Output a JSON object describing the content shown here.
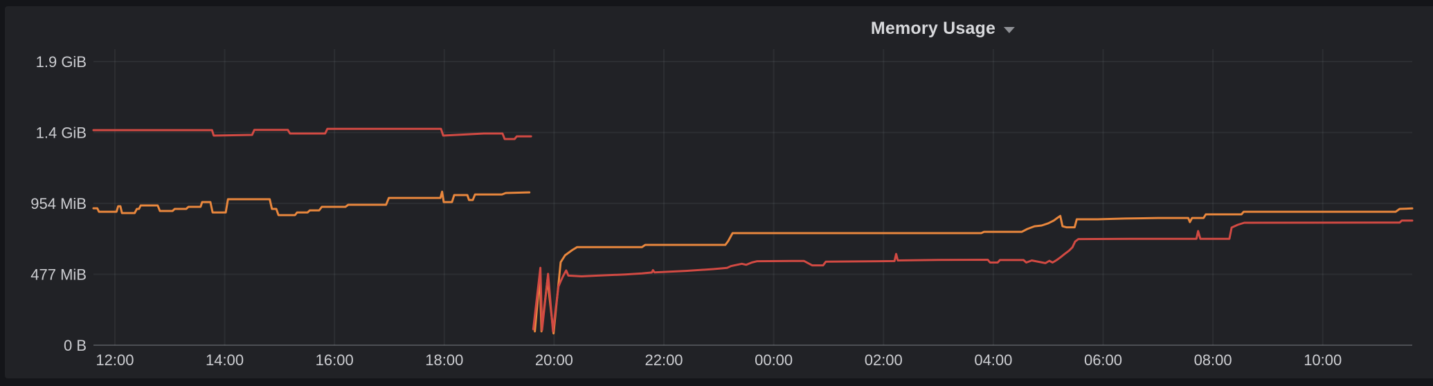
{
  "page": {
    "background": "#141519"
  },
  "panel": {
    "title": "Memory Usage",
    "background": "#212226",
    "title_color": "#d8d9dc",
    "chevron_color": "#8f9196"
  },
  "chart_data": {
    "type": "line",
    "title": "Memory Usage",
    "xlabel": "",
    "ylabel": "",
    "legend": "none",
    "grid": true,
    "x_unit": "time (hours, 24h clock; values >= 24 are next day)",
    "y_unit": "MiB",
    "x_range": [
      11.61,
      35.63
    ],
    "y_range": [
      0,
      1992
    ],
    "grid_color": "rgba(204,208,216,0.07)",
    "axis_line_color": "rgba(204,208,216,0.26)",
    "label_color": "#cdced2",
    "x_ticks": [
      {
        "t": 12,
        "label": "12:00"
      },
      {
        "t": 14,
        "label": "14:00"
      },
      {
        "t": 16,
        "label": "16:00"
      },
      {
        "t": 18,
        "label": "18:00"
      },
      {
        "t": 20,
        "label": "20:00"
      },
      {
        "t": 22,
        "label": "22:00"
      },
      {
        "t": 24,
        "label": "00:00"
      },
      {
        "t": 26,
        "label": "02:00"
      },
      {
        "t": 28,
        "label": "04:00"
      },
      {
        "t": 30,
        "label": "06:00"
      },
      {
        "t": 32,
        "label": "08:00"
      },
      {
        "t": 34,
        "label": "10:00"
      }
    ],
    "y_ticks": [
      {
        "v": 0,
        "label": "0 B"
      },
      {
        "v": 477,
        "label": "477 MiB"
      },
      {
        "v": 954,
        "label": "954 MiB"
      },
      {
        "v": 1431,
        "label": "1.4 GiB"
      },
      {
        "v": 1908,
        "label": "1.9 GiB"
      }
    ],
    "series": [
      {
        "name": "orange-series",
        "color": "#e9873d",
        "segments": [
          [
            [
              11.61,
              921
            ],
            [
              11.68,
              921
            ],
            [
              11.71,
              898
            ],
            [
              12.03,
              898
            ],
            [
              12.06,
              935
            ],
            [
              12.1,
              935
            ],
            [
              12.13,
              889
            ],
            [
              12.36,
              889
            ],
            [
              12.4,
              917
            ],
            [
              12.44,
              917
            ],
            [
              12.47,
              940
            ],
            [
              12.78,
              940
            ],
            [
              12.82,
              903
            ],
            [
              13.05,
              903
            ],
            [
              13.09,
              917
            ],
            [
              13.3,
              917
            ],
            [
              13.34,
              931
            ],
            [
              13.56,
              931
            ],
            [
              13.59,
              963
            ],
            [
              13.74,
              963
            ],
            [
              13.78,
              893
            ],
            [
              14.02,
              893
            ],
            [
              14.06,
              982
            ],
            [
              14.82,
              982
            ],
            [
              14.86,
              917
            ],
            [
              14.94,
              917
            ],
            [
              14.98,
              875
            ],
            [
              15.28,
              875
            ],
            [
              15.32,
              893
            ],
            [
              15.51,
              893
            ],
            [
              15.55,
              907
            ],
            [
              15.72,
              907
            ],
            [
              15.77,
              931
            ],
            [
              16.2,
              931
            ],
            [
              16.25,
              945
            ],
            [
              16.94,
              945
            ],
            [
              16.99,
              991
            ],
            [
              17.93,
              991
            ],
            [
              17.96,
              1033
            ],
            [
              17.99,
              963
            ],
            [
              18.14,
              963
            ],
            [
              18.18,
              1010
            ],
            [
              18.42,
              1010
            ],
            [
              18.45,
              977
            ],
            [
              18.52,
              977
            ],
            [
              18.56,
              1014
            ],
            [
              19.05,
              1014
            ],
            [
              19.12,
              1024
            ],
            [
              19.55,
              1028
            ]
          ],
          [
            [
              19.65,
              93
            ],
            [
              19.74,
              465
            ],
            [
              19.77,
              93
            ],
            [
              19.88,
              442
            ],
            [
              19.99,
              79
            ],
            [
              20.12,
              558
            ],
            [
              20.2,
              605
            ],
            [
              20.33,
              640
            ],
            [
              20.42,
              660
            ],
            [
              21.6,
              660
            ],
            [
              21.66,
              675
            ],
            [
              23.12,
              675
            ],
            [
              23.17,
              700
            ],
            [
              23.25,
              754
            ],
            [
              27.78,
              754
            ],
            [
              27.83,
              763
            ],
            [
              28.52,
              763
            ],
            [
              28.62,
              782
            ],
            [
              28.75,
              800
            ],
            [
              28.88,
              805
            ],
            [
              29.0,
              820
            ],
            [
              29.1,
              838
            ],
            [
              29.18,
              860
            ],
            [
              29.22,
              870
            ],
            [
              29.26,
              800
            ],
            [
              29.33,
              793
            ],
            [
              29.48,
              793
            ],
            [
              29.52,
              847
            ],
            [
              29.9,
              847
            ],
            [
              30.4,
              852
            ],
            [
              31.0,
              856
            ],
            [
              31.55,
              856
            ],
            [
              31.58,
              828
            ],
            [
              31.62,
              856
            ],
            [
              31.83,
              856
            ],
            [
              31.87,
              880
            ],
            [
              32.52,
              880
            ],
            [
              32.56,
              898
            ],
            [
              35.33,
              898
            ],
            [
              35.4,
              917
            ],
            [
              35.63,
              920
            ]
          ]
        ]
      },
      {
        "name": "red-series",
        "color": "#d24a43",
        "segments": [
          [
            [
              11.61,
              1447
            ],
            [
              13.77,
              1447
            ],
            [
              13.8,
              1410
            ],
            [
              14.5,
              1415
            ],
            [
              14.54,
              1449
            ],
            [
              15.15,
              1449
            ],
            [
              15.19,
              1424
            ],
            [
              15.83,
              1424
            ],
            [
              15.87,
              1456
            ],
            [
              17.94,
              1456
            ],
            [
              17.98,
              1410
            ],
            [
              18.72,
              1424
            ],
            [
              19.06,
              1424
            ],
            [
              19.1,
              1387
            ],
            [
              19.28,
              1387
            ],
            [
              19.32,
              1405
            ],
            [
              19.58,
              1405
            ]
          ],
          [
            [
              19.62,
              107
            ],
            [
              19.75,
              521
            ],
            [
              19.78,
              102
            ],
            [
              19.89,
              480
            ],
            [
              19.98,
              93
            ],
            [
              20.08,
              395
            ],
            [
              20.12,
              430
            ],
            [
              20.16,
              462
            ],
            [
              20.22,
              503
            ],
            [
              20.26,
              468
            ],
            [
              20.5,
              463
            ],
            [
              20.8,
              468
            ],
            [
              21.3,
              476
            ],
            [
              21.6,
              483
            ],
            [
              21.78,
              489
            ],
            [
              21.8,
              505
            ],
            [
              21.83,
              490
            ],
            [
              22.4,
              500
            ],
            [
              22.9,
              512
            ],
            [
              23.15,
              520
            ],
            [
              23.22,
              532
            ],
            [
              23.42,
              548
            ],
            [
              23.5,
              541
            ],
            [
              23.6,
              556
            ],
            [
              23.7,
              565
            ],
            [
              24.55,
              567
            ],
            [
              24.7,
              537
            ],
            [
              24.9,
              537
            ],
            [
              24.95,
              562
            ],
            [
              26.2,
              566
            ],
            [
              26.23,
              614
            ],
            [
              26.26,
              570
            ],
            [
              27.0,
              574
            ],
            [
              27.9,
              575
            ],
            [
              27.94,
              556
            ],
            [
              28.08,
              556
            ],
            [
              28.12,
              573
            ],
            [
              28.55,
              573
            ],
            [
              28.6,
              556
            ],
            [
              28.7,
              570
            ],
            [
              28.95,
              552
            ],
            [
              29.02,
              568
            ],
            [
              29.08,
              556
            ],
            [
              29.15,
              572
            ],
            [
              29.22,
              590
            ],
            [
              29.3,
              614
            ],
            [
              29.38,
              636
            ],
            [
              29.44,
              658
            ],
            [
              29.49,
              697
            ],
            [
              29.55,
              714
            ],
            [
              30.5,
              716
            ],
            [
              31.7,
              716
            ],
            [
              31.73,
              768
            ],
            [
              31.77,
              716
            ],
            [
              32.3,
              716
            ],
            [
              32.34,
              791
            ],
            [
              32.45,
              810
            ],
            [
              32.57,
              824
            ],
            [
              35.0,
              825
            ],
            [
              35.4,
              825
            ],
            [
              35.44,
              838
            ],
            [
              35.63,
              838
            ]
          ]
        ]
      }
    ]
  }
}
